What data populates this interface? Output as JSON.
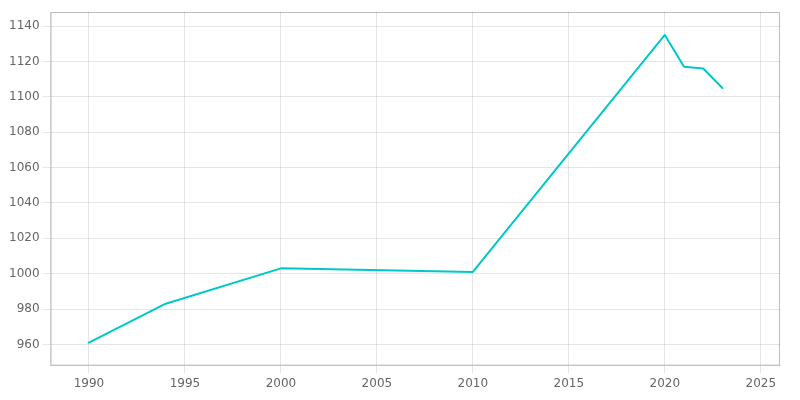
{
  "chart_data": {
    "type": "line",
    "x": [
      1990,
      1994,
      2000,
      2010,
      2020,
      2021,
      2022,
      2023
    ],
    "values": [
      961,
      983,
      1003,
      1001,
      1135,
      1117,
      1116,
      1105
    ],
    "color": "#00C8C8",
    "xlim": [
      1988,
      2026
    ],
    "ylim": [
      948,
      1148
    ],
    "xticks": [
      1990,
      1995,
      2000,
      2005,
      2010,
      2015,
      2020,
      2025
    ],
    "yticks": [
      960,
      980,
      1000,
      1020,
      1040,
      1060,
      1080,
      1100,
      1120,
      1140
    ],
    "grid": true
  }
}
